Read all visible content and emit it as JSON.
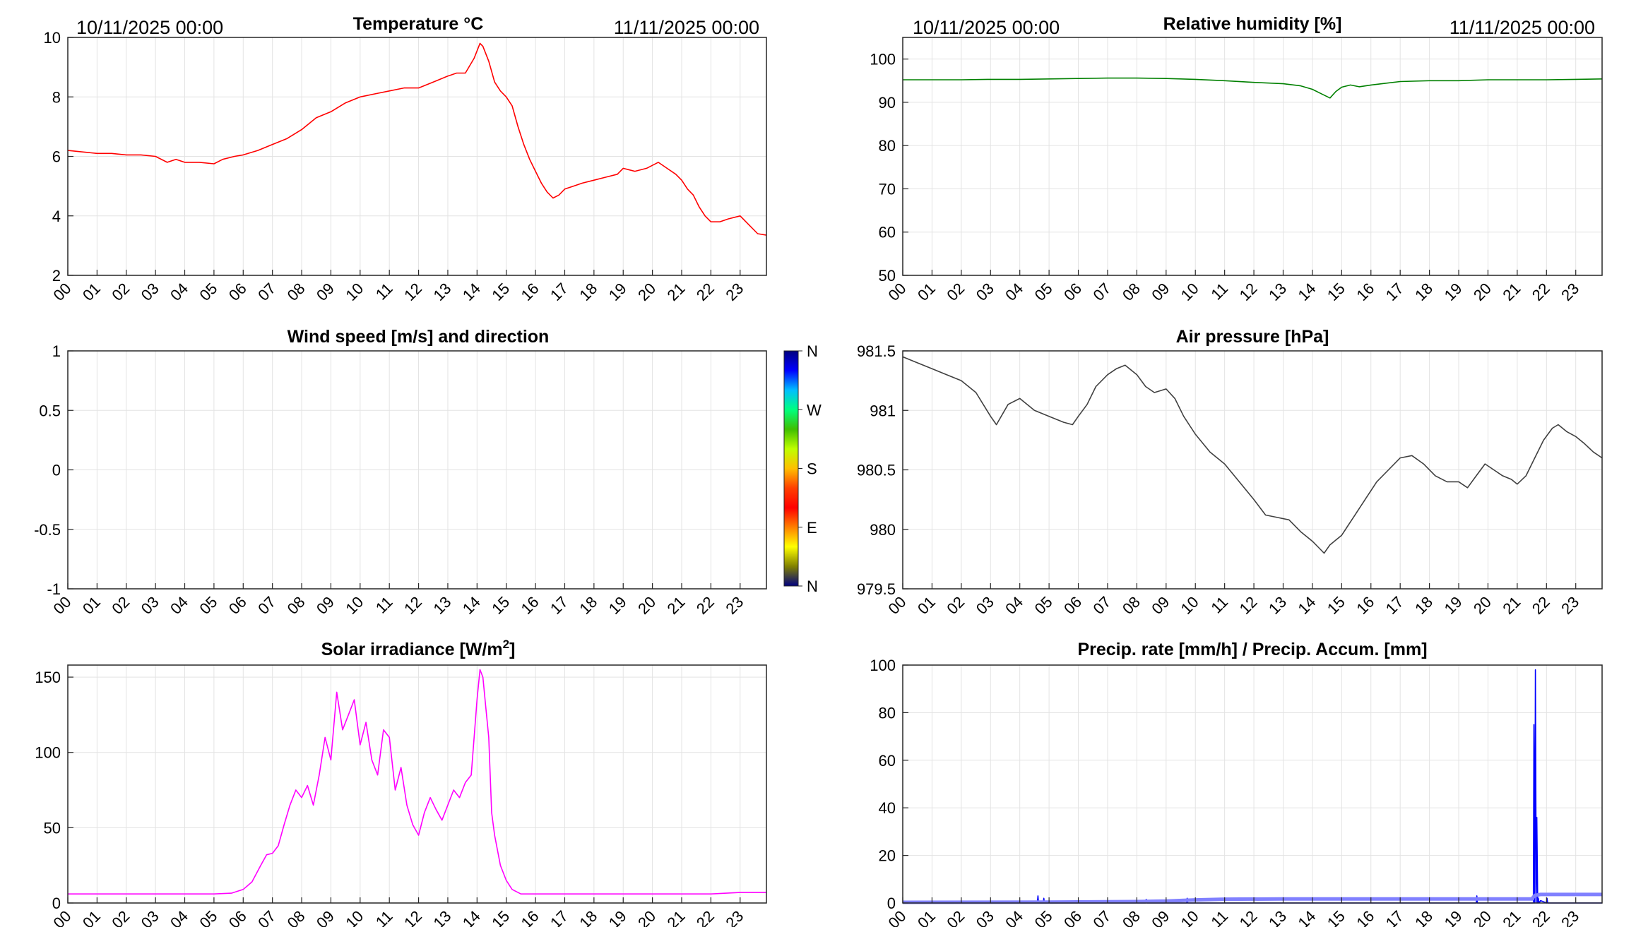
{
  "chart_data": [
    {
      "id": "temperature",
      "type": "line",
      "title": "Temperature °C",
      "date_start": "10/11/2025 00:00",
      "date_end": "11/11/2025 00:00",
      "x_ticks": [
        "00",
        "01",
        "02",
        "03",
        "04",
        "05",
        "06",
        "07",
        "08",
        "09",
        "10",
        "11",
        "12",
        "13",
        "14",
        "15",
        "16",
        "17",
        "18",
        "19",
        "20",
        "21",
        "22",
        "23"
      ],
      "xlim": [
        0,
        23.9
      ],
      "ylim": [
        2,
        10
      ],
      "y_ticks": [
        2,
        4,
        6,
        8,
        10
      ],
      "grid": true,
      "series": [
        {
          "color": "#ff0000",
          "x": [
            0,
            0.5,
            1,
            1.5,
            2,
            2.5,
            3,
            3.4,
            3.7,
            4,
            4.5,
            5,
            5.3,
            5.7,
            6,
            6.5,
            7,
            7.5,
            8,
            8.5,
            9,
            9.5,
            10,
            10.5,
            11,
            11.5,
            12,
            12.5,
            13,
            13.3,
            13.6,
            13.9,
            14.1,
            14.2,
            14.4,
            14.6,
            14.8,
            15,
            15.2,
            15.4,
            15.6,
            15.8,
            16,
            16.2,
            16.4,
            16.6,
            16.8,
            17,
            17.3,
            17.6,
            18,
            18.4,
            18.8,
            19,
            19.4,
            19.8,
            20.2,
            20.5,
            20.8,
            21,
            21.2,
            21.4,
            21.6,
            21.8,
            22,
            22.3,
            22.6,
            23,
            23.3,
            23.6,
            23.9
          ],
          "y": [
            6.2,
            6.15,
            6.1,
            6.1,
            6.05,
            6.05,
            6.0,
            5.8,
            5.9,
            5.8,
            5.8,
            5.75,
            5.9,
            6.0,
            6.05,
            6.2,
            6.4,
            6.6,
            6.9,
            7.3,
            7.5,
            7.8,
            8.0,
            8.1,
            8.2,
            8.3,
            8.3,
            8.5,
            8.7,
            8.8,
            8.8,
            9.3,
            9.8,
            9.7,
            9.2,
            8.5,
            8.2,
            8.0,
            7.7,
            7.0,
            6.4,
            5.9,
            5.5,
            5.1,
            4.8,
            4.6,
            4.7,
            4.9,
            5.0,
            5.1,
            5.2,
            5.3,
            5.4,
            5.6,
            5.5,
            5.6,
            5.8,
            5.6,
            5.4,
            5.2,
            4.9,
            4.7,
            4.3,
            4.0,
            3.8,
            3.8,
            3.9,
            4.0,
            3.7,
            3.4,
            3.35
          ]
        }
      ]
    },
    {
      "id": "humidity",
      "type": "line",
      "title": "Relative humidity [%]",
      "date_start": "10/11/2025 00:00",
      "date_end": "11/11/2025 00:00",
      "x_ticks": [
        "00",
        "01",
        "02",
        "03",
        "04",
        "05",
        "06",
        "07",
        "08",
        "09",
        "10",
        "11",
        "12",
        "13",
        "14",
        "15",
        "16",
        "17",
        "18",
        "19",
        "20",
        "21",
        "22",
        "23"
      ],
      "xlim": [
        0,
        23.9
      ],
      "ylim": [
        50,
        105
      ],
      "y_ticks": [
        50,
        60,
        70,
        80,
        90,
        100
      ],
      "grid": true,
      "series": [
        {
          "color": "#008000",
          "x": [
            0,
            1,
            2,
            3,
            4,
            5,
            6,
            7,
            8,
            9,
            10,
            11,
            12,
            13,
            13.6,
            14.0,
            14.3,
            14.6,
            14.8,
            15.0,
            15.3,
            15.6,
            16,
            16.5,
            17,
            18,
            19,
            20,
            21,
            22,
            23,
            23.9
          ],
          "y": [
            95.2,
            95.2,
            95.2,
            95.3,
            95.3,
            95.4,
            95.5,
            95.6,
            95.6,
            95.5,
            95.3,
            95.0,
            94.6,
            94.3,
            93.8,
            93.0,
            92.0,
            91.0,
            92.5,
            93.5,
            94.0,
            93.6,
            94.0,
            94.4,
            94.8,
            95.0,
            95.0,
            95.2,
            95.2,
            95.2,
            95.3,
            95.4
          ]
        }
      ]
    },
    {
      "id": "wind",
      "type": "scatter",
      "title": "Wind speed [m/s] and direction",
      "x_ticks": [
        "00",
        "01",
        "02",
        "03",
        "04",
        "05",
        "06",
        "07",
        "08",
        "09",
        "10",
        "11",
        "12",
        "13",
        "14",
        "15",
        "16",
        "17",
        "18",
        "19",
        "20",
        "21",
        "22",
        "23"
      ],
      "xlim": [
        0,
        23.9
      ],
      "ylim": [
        -1,
        1
      ],
      "y_ticks": [
        -1,
        -0.5,
        0,
        0.5,
        1
      ],
      "grid": true,
      "series": [],
      "colorbar": {
        "labels": [
          "N",
          "W",
          "S",
          "E",
          "N"
        ],
        "colors": [
          "#00007f",
          "#0000ff",
          "#00bfff",
          "#00ff7f",
          "#3fbf00",
          "#bfff00",
          "#ffbf00",
          "#ff4000",
          "#ff0000",
          "#ff8000",
          "#ffff00",
          "#808000",
          "#00007f"
        ]
      }
    },
    {
      "id": "pressure",
      "type": "line",
      "title": "Air pressure [hPa]",
      "x_ticks": [
        "00",
        "01",
        "02",
        "03",
        "04",
        "05",
        "06",
        "07",
        "08",
        "09",
        "10",
        "11",
        "12",
        "13",
        "14",
        "15",
        "16",
        "17",
        "18",
        "19",
        "20",
        "21",
        "22",
        "23"
      ],
      "xlim": [
        0,
        23.9
      ],
      "ylim": [
        979.5,
        981.5
      ],
      "y_ticks": [
        979.5,
        980,
        980.5,
        981,
        981.5
      ],
      "grid": true,
      "series": [
        {
          "color": "#404040",
          "x": [
            0,
            0.5,
            1,
            1.5,
            2,
            2.5,
            3,
            3.2,
            3.6,
            4,
            4.5,
            5,
            5.5,
            5.8,
            6,
            6.3,
            6.6,
            7,
            7.3,
            7.6,
            8,
            8.3,
            8.6,
            9,
            9.3,
            9.6,
            10,
            10.5,
            11,
            11.5,
            12,
            12.4,
            12.8,
            13.2,
            13.6,
            14,
            14.2,
            14.4,
            14.6,
            15,
            15.4,
            15.8,
            16.2,
            16.6,
            17,
            17.4,
            17.8,
            18.2,
            18.6,
            19,
            19.3,
            19.6,
            19.9,
            20.2,
            20.5,
            20.8,
            21,
            21.3,
            21.6,
            21.9,
            22.2,
            22.4,
            22.7,
            23,
            23.3,
            23.6,
            23.9
          ],
          "y": [
            981.45,
            981.4,
            981.35,
            981.3,
            981.25,
            981.15,
            980.95,
            980.88,
            981.05,
            981.1,
            981.0,
            980.95,
            980.9,
            980.88,
            980.95,
            981.05,
            981.2,
            981.3,
            981.35,
            981.38,
            981.3,
            981.2,
            981.15,
            981.18,
            981.1,
            980.95,
            980.8,
            980.65,
            980.55,
            980.4,
            980.25,
            980.12,
            980.1,
            980.08,
            979.98,
            979.9,
            979.85,
            979.8,
            979.87,
            979.95,
            980.1,
            980.25,
            980.4,
            980.5,
            980.6,
            980.62,
            980.55,
            980.45,
            980.4,
            980.4,
            980.35,
            980.45,
            980.55,
            980.5,
            980.45,
            980.42,
            980.38,
            980.45,
            980.6,
            980.75,
            980.85,
            980.88,
            980.82,
            980.78,
            980.72,
            980.65,
            980.6
          ]
        }
      ]
    },
    {
      "id": "solar",
      "type": "line",
      "title": "Solar irradiance [W/m",
      "title_sup": "2",
      "title_end": "]",
      "x_ticks": [
        "00",
        "01",
        "02",
        "03",
        "04",
        "05",
        "06",
        "07",
        "08",
        "09",
        "10",
        "11",
        "12",
        "13",
        "14",
        "15",
        "16",
        "17",
        "18",
        "19",
        "20",
        "21",
        "22",
        "23"
      ],
      "xlim": [
        0,
        23.9
      ],
      "ylim": [
        0,
        158
      ],
      "y_ticks": [
        0,
        50,
        100,
        150
      ],
      "grid": true,
      "series": [
        {
          "color": "#ff00ff",
          "x": [
            0,
            1,
            2,
            3,
            4,
            5,
            5.6,
            6.0,
            6.3,
            6.6,
            6.8,
            7,
            7.2,
            7.4,
            7.6,
            7.8,
            8,
            8.2,
            8.4,
            8.6,
            8.8,
            9.0,
            9.2,
            9.4,
            9.6,
            9.8,
            10.0,
            10.2,
            10.4,
            10.6,
            10.8,
            11.0,
            11.2,
            11.4,
            11.6,
            11.8,
            12.0,
            12.2,
            12.4,
            12.6,
            12.8,
            13.0,
            13.2,
            13.4,
            13.6,
            13.8,
            14.0,
            14.1,
            14.2,
            14.3,
            14.4,
            14.5,
            14.6,
            14.8,
            15.0,
            15.2,
            15.5,
            16,
            17,
            18,
            19,
            20,
            21,
            22,
            23,
            23.9
          ],
          "y": [
            6,
            6,
            6,
            6,
            6,
            6,
            6.5,
            9,
            14,
            25,
            32,
            33,
            38,
            52,
            65,
            75,
            70,
            78,
            65,
            85,
            110,
            95,
            140,
            115,
            125,
            135,
            105,
            120,
            95,
            85,
            115,
            110,
            75,
            90,
            65,
            52,
            45,
            60,
            70,
            62,
            55,
            65,
            75,
            70,
            80,
            85,
            135,
            155,
            150,
            130,
            110,
            60,
            45,
            25,
            15,
            9,
            6,
            6,
            6,
            6,
            6,
            6,
            6,
            6,
            7,
            7
          ]
        }
      ]
    },
    {
      "id": "precip",
      "type": "line",
      "title": "Precip. rate [mm/h] / Precip. Accum. [mm]",
      "x_ticks": [
        "00",
        "01",
        "02",
        "03",
        "04",
        "05",
        "06",
        "07",
        "08",
        "09",
        "10",
        "11",
        "12",
        "13",
        "14",
        "15",
        "16",
        "17",
        "18",
        "19",
        "20",
        "21",
        "22",
        "23"
      ],
      "xlim": [
        0,
        23.9
      ],
      "ylim": [
        0,
        100
      ],
      "y_ticks": [
        0,
        20,
        40,
        60,
        80,
        100
      ],
      "grid": true,
      "series": [
        {
          "color": "#0000ff",
          "x": [
            0,
            4.6,
            4.62,
            4.64,
            4.8,
            4.82,
            4.84,
            5.0,
            8.3,
            8.32,
            8.34,
            9.7,
            9.72,
            9.74,
            19.6,
            19.62,
            19.64,
            21.55,
            21.57,
            21.6,
            21.62,
            21.65,
            21.67,
            21.7,
            21.72,
            21.75,
            21.8,
            22.0,
            22.02,
            22.04,
            23.9
          ],
          "y": [
            0,
            0,
            3,
            0,
            0,
            2,
            0,
            0,
            0,
            1.5,
            0,
            0,
            2,
            0,
            0,
            3,
            0,
            0,
            75,
            0,
            98,
            0,
            36,
            0,
            2,
            0,
            1,
            0,
            2,
            0,
            0
          ]
        },
        {
          "color": "#8080ff",
          "x": [
            0,
            5,
            8,
            9,
            10,
            11,
            13,
            21.5,
            21.6,
            21.8,
            23.9
          ],
          "y": [
            0.3,
            0.4,
            0.6,
            0.8,
            1.3,
            1.6,
            1.7,
            1.7,
            3.2,
            3.6,
            3.6
          ]
        }
      ]
    }
  ]
}
